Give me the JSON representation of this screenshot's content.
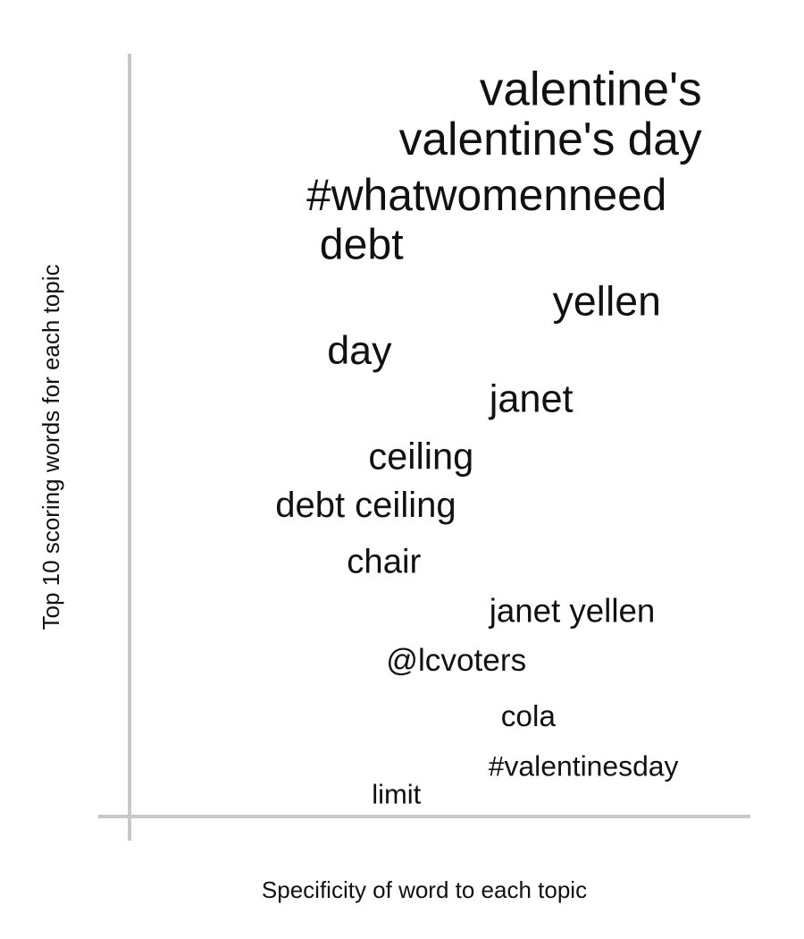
{
  "chart_data": {
    "type": "scatter",
    "title": "",
    "xlabel": "Specificity of word to each topic",
    "ylabel": "Top 10 scoring words for each topic",
    "grid": false,
    "legend": "none",
    "text_color": "#111111",
    "axis_color": "#c8c8c8",
    "words": [
      {
        "label": "valentine's",
        "specificity": 0.94,
        "score": 1.0
      },
      {
        "label": "valentine's day",
        "specificity": 0.94,
        "score": 0.93
      },
      {
        "label": "#whatwomenneed",
        "specificity": 0.88,
        "score": 0.85
      },
      {
        "label": "debt",
        "specificity": 0.43,
        "score": 0.78
      },
      {
        "label": "yellen",
        "specificity": 0.87,
        "score": 0.7
      },
      {
        "label": "day",
        "specificity": 0.41,
        "score": 0.63
      },
      {
        "label": "janet",
        "specificity": 0.72,
        "score": 0.56
      },
      {
        "label": "ceiling",
        "specificity": 0.55,
        "score": 0.48
      },
      {
        "label": "debt ceiling",
        "specificity": 0.52,
        "score": 0.41
      },
      {
        "label": "chair",
        "specificity": 0.46,
        "score": 0.33
      },
      {
        "label": "janet yellen",
        "specificity": 0.86,
        "score": 0.26
      },
      {
        "label": "@lcvoters",
        "specificity": 0.64,
        "score": 0.19
      },
      {
        "label": "cola",
        "specificity": 0.69,
        "score": 0.11
      },
      {
        "label": "#valentinesday",
        "specificity": 0.9,
        "score": 0.04
      },
      {
        "label": "limit",
        "specificity": 0.46,
        "score": 0.0
      }
    ]
  }
}
